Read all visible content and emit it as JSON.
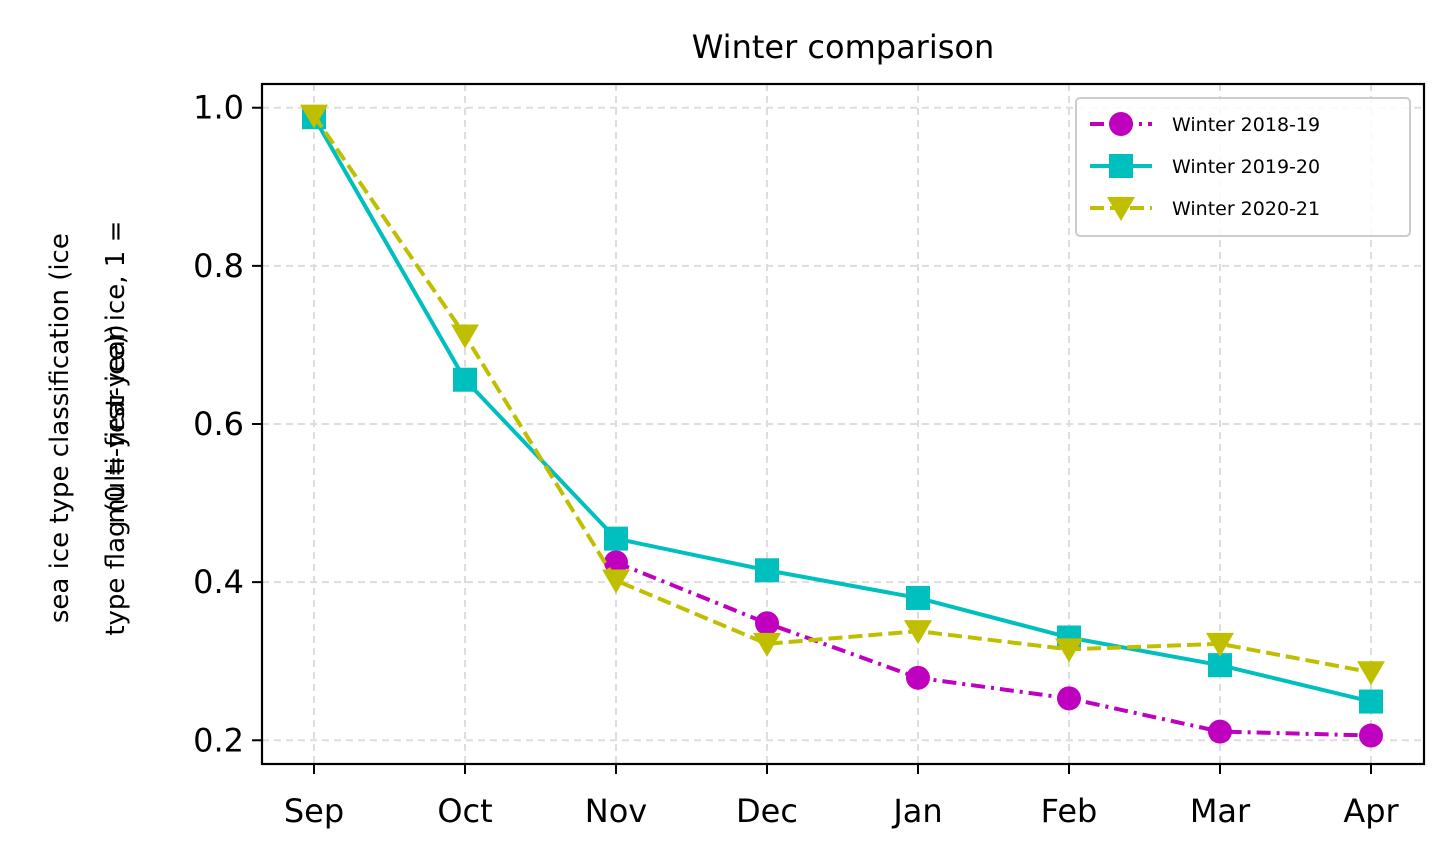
{
  "chart_data": {
    "type": "line",
    "title": "Winter comparison",
    "xlabel": "",
    "ylabel_lines": [
      "sea ice type classification (ice",
      "type flag (0 = first-year ice, 1 =",
      "multi-year ice))"
    ],
    "categories": [
      "Sep",
      "Oct",
      "Nov",
      "Dec",
      "Jan",
      "Feb",
      "Mar",
      "Apr"
    ],
    "ylim": [
      0.17,
      1.03
    ],
    "yticks": [
      "1.0",
      "0.8",
      "0.6",
      "0.4",
      "0.2"
    ],
    "grid": true,
    "legend_position": "top-right",
    "series": [
      {
        "name": "Winter 2018-19",
        "color": "#bf00bf",
        "line_style": "dashdot",
        "marker": "circle",
        "values": [
          null,
          null,
          0.425,
          0.348,
          0.279,
          0.253,
          0.211,
          0.206
        ]
      },
      {
        "name": "Winter 2019-20",
        "color": "#00bfbf",
        "line_style": "solid",
        "marker": "square",
        "values": [
          0.988,
          0.656,
          0.455,
          0.415,
          0.38,
          0.33,
          0.295,
          0.249
        ]
      },
      {
        "name": "Winter 2020-21",
        "color": "#bfbf00",
        "line_style": "dashed",
        "marker": "triangle-down",
        "values": [
          0.99,
          0.712,
          0.402,
          0.322,
          0.338,
          0.315,
          0.322,
          0.286
        ]
      }
    ]
  }
}
